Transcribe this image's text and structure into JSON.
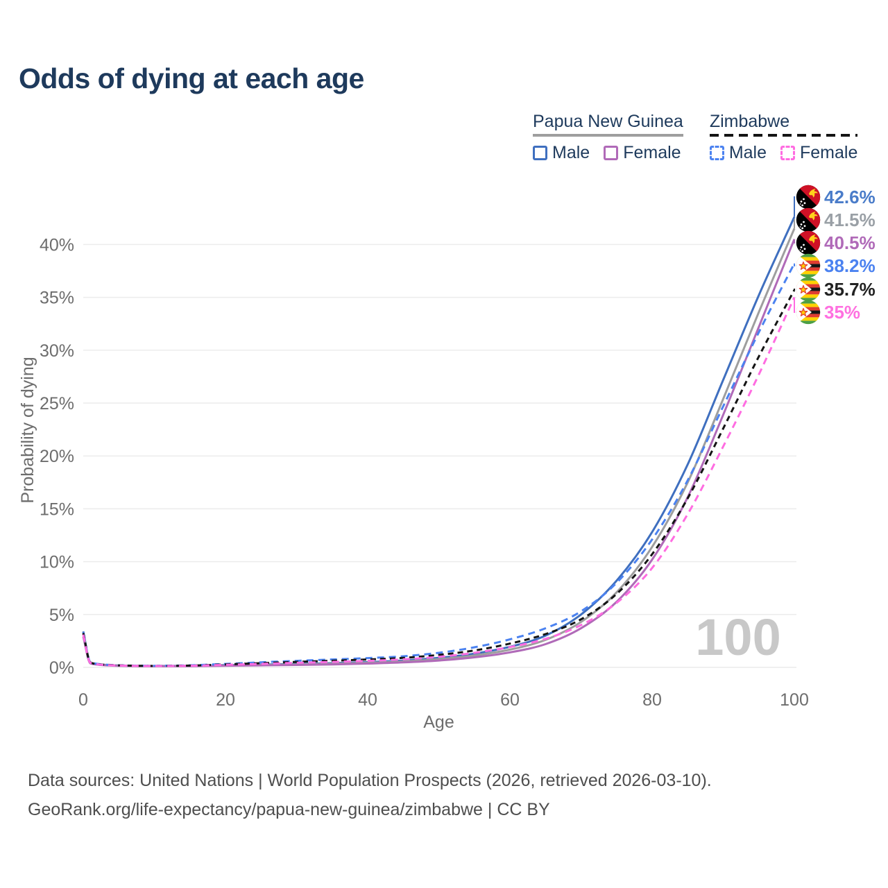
{
  "title": "Odds of dying at each age",
  "colors": {
    "title_text": "#1e3a5c",
    "axis_text": "#6d6d6d",
    "gridline": "#ececec",
    "footer_text": "#4e4e4e",
    "watermark": "#c8c8c8",
    "png_male": "#3f6fbf",
    "png_total": "#9e9e9e",
    "png_female": "#b06ab8",
    "zwe_male": "#4b82f0",
    "zwe_total": "#141414",
    "zwe_female": "#ff6ce1"
  },
  "legend": {
    "groups": [
      {
        "country": "Papua New Guinea",
        "line": "solid",
        "underline_color": "#9e9e9e",
        "items": [
          {
            "label": "Male",
            "color": "#3f6fbf",
            "dash": "solid"
          },
          {
            "label": "Female",
            "color": "#b06ab8",
            "dash": "solid"
          }
        ]
      },
      {
        "country": "Zimbabwe",
        "line": "dashed",
        "underline_color": "#141414",
        "items": [
          {
            "label": "Male",
            "color": "#4b82f0",
            "dash": "dashed"
          },
          {
            "label": "Female",
            "color": "#ff6ce1",
            "dash": "dashed"
          }
        ]
      }
    ]
  },
  "chart_data": {
    "type": "line",
    "title": "Odds of dying at each age",
    "xlabel": "Age",
    "ylabel": "Probability of dying",
    "xlim": [
      0,
      100
    ],
    "ylim_percent": [
      0,
      44
    ],
    "grid": "horizontal",
    "age_indicator": "100",
    "x_ticks": [
      {
        "value": 0,
        "label": "0"
      },
      {
        "value": 20,
        "label": "20"
      },
      {
        "value": 40,
        "label": "40"
      },
      {
        "value": 60,
        "label": "60"
      },
      {
        "value": 80,
        "label": "80"
      },
      {
        "value": 100,
        "label": "100"
      }
    ],
    "y_ticks": [
      {
        "value": 0,
        "label": "0%"
      },
      {
        "value": 5,
        "label": "5%"
      },
      {
        "value": 10,
        "label": "10%"
      },
      {
        "value": 15,
        "label": "15%"
      },
      {
        "value": 20,
        "label": "20%"
      },
      {
        "value": 25,
        "label": "25%"
      },
      {
        "value": 30,
        "label": "30%"
      },
      {
        "value": 35,
        "label": "35%"
      },
      {
        "value": 40,
        "label": "40%"
      }
    ],
    "ages": [
      0,
      1,
      2,
      5,
      10,
      15,
      20,
      25,
      30,
      35,
      40,
      45,
      50,
      55,
      60,
      65,
      70,
      75,
      80,
      85,
      90,
      95,
      100
    ],
    "series": [
      {
        "id": "png-male",
        "name": "Papua New Guinea Male",
        "country": "Papua New Guinea",
        "sex": "Male",
        "flag": "png",
        "line": "solid",
        "dash_pattern": "",
        "color": "#3f6fbf",
        "label_color": "#4a7cc9",
        "end_label": "42.6%",
        "end_value_percent": 42.6,
        "values": [
          3.4,
          0.45,
          0.3,
          0.18,
          0.13,
          0.16,
          0.22,
          0.27,
          0.33,
          0.4,
          0.5,
          0.65,
          0.9,
          1.3,
          1.95,
          3.0,
          5.0,
          8.2,
          12.8,
          19.2,
          27.2,
          35.2,
          42.6
        ]
      },
      {
        "id": "png-total",
        "name": "Papua New Guinea Total",
        "country": "Papua New Guinea",
        "sex": "Both",
        "flag": "png",
        "line": "solid",
        "dash_pattern": "",
        "color": "#9e9e9e",
        "label_color": "#9aa0a6",
        "end_label": "41.5%",
        "end_value_percent": 41.5,
        "values": [
          3.15,
          0.42,
          0.28,
          0.17,
          0.12,
          0.14,
          0.19,
          0.23,
          0.28,
          0.34,
          0.43,
          0.56,
          0.78,
          1.12,
          1.68,
          2.6,
          4.3,
          7.1,
          11.4,
          17.5,
          25.4,
          33.6,
          41.5
        ]
      },
      {
        "id": "png-female",
        "name": "Papua New Guinea Female",
        "country": "Papua New Guinea",
        "sex": "Female",
        "flag": "png",
        "line": "solid",
        "dash_pattern": "",
        "color": "#b06ab8",
        "label_color": "#b06ab8",
        "end_label": "40.5%",
        "end_value_percent": 40.5,
        "values": [
          2.9,
          0.38,
          0.26,
          0.15,
          0.11,
          0.12,
          0.16,
          0.19,
          0.23,
          0.28,
          0.36,
          0.47,
          0.65,
          0.95,
          1.42,
          2.2,
          3.7,
          6.2,
          10.2,
          16.1,
          23.9,
          32.2,
          40.5
        ]
      },
      {
        "id": "zwe-male",
        "name": "Zimbabwe Male",
        "country": "Zimbabwe",
        "sex": "Male",
        "flag": "zwe",
        "line": "dashed",
        "dash_pattern": "10 7",
        "color": "#4b82f0",
        "label_color": "#4b82f0",
        "end_label": "38.2%",
        "end_value_percent": 38.2,
        "values": [
          3.35,
          0.5,
          0.33,
          0.2,
          0.15,
          0.2,
          0.33,
          0.48,
          0.62,
          0.75,
          0.88,
          1.05,
          1.38,
          1.9,
          2.65,
          3.7,
          5.3,
          8.0,
          12.1,
          17.7,
          24.7,
          31.7,
          38.2
        ]
      },
      {
        "id": "zwe-total",
        "name": "Zimbabwe Total",
        "country": "Zimbabwe",
        "sex": "Both",
        "flag": "zwe",
        "line": "dashed",
        "dash_pattern": "8 6",
        "color": "#141414",
        "label_color": "#222222",
        "end_label": "35.7%",
        "end_value_percent": 35.7,
        "values": [
          3.25,
          0.47,
          0.31,
          0.19,
          0.14,
          0.17,
          0.28,
          0.4,
          0.52,
          0.63,
          0.75,
          0.9,
          1.18,
          1.6,
          2.25,
          3.15,
          4.55,
          6.95,
          10.7,
          16.0,
          22.6,
          29.4,
          35.7
        ]
      },
      {
        "id": "zwe-female",
        "name": "Zimbabwe Female",
        "country": "Zimbabwe",
        "sex": "Female",
        "flag": "zwe",
        "line": "dashed",
        "dash_pattern": "10 7",
        "color": "#ff6ce1",
        "label_color": "#ff70e0",
        "end_label": "35%",
        "end_value_percent": 35.0,
        "values": [
          3.1,
          0.44,
          0.29,
          0.18,
          0.13,
          0.15,
          0.24,
          0.33,
          0.43,
          0.52,
          0.62,
          0.76,
          1.0,
          1.38,
          1.92,
          2.7,
          4.0,
          6.1,
          9.4,
          14.5,
          20.9,
          27.7,
          35.0
        ]
      }
    ]
  },
  "footer": {
    "line1": "Data sources: United Nations | World Population Prospects (2026, retrieved 2026-03-10).",
    "line2": "GeoRank.org/life-expectancy/papua-new-guinea/zimbabwe | CC BY"
  }
}
